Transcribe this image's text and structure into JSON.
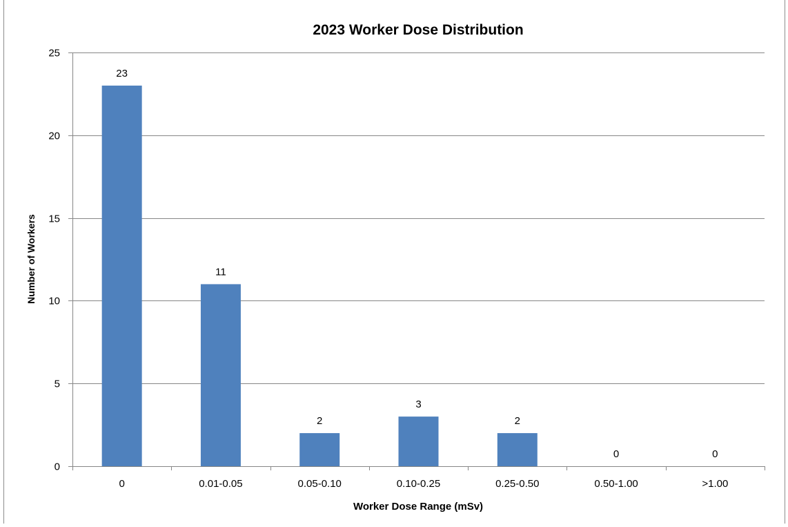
{
  "chart_data": {
    "type": "bar",
    "title": "2023 Worker Dose Distribution",
    "xlabel": "Worker Dose Range (mSv)",
    "ylabel": "Number of Workers",
    "categories": [
      "0",
      "0.01-0.05",
      "0.05-0.10",
      "0.10-0.25",
      "0.25-0.50",
      "0.50-1.00",
      ">1.00"
    ],
    "values": [
      23,
      11,
      2,
      3,
      2,
      0,
      0
    ],
    "ylim": [
      0,
      25
    ],
    "yticks": [
      0,
      5,
      10,
      15,
      20,
      25
    ],
    "grid": true,
    "legend": "none",
    "data_labels": true,
    "colors": {
      "bar": "#4f81bd",
      "grid": "#868686",
      "axis": "#868686",
      "text": "#000000"
    }
  }
}
